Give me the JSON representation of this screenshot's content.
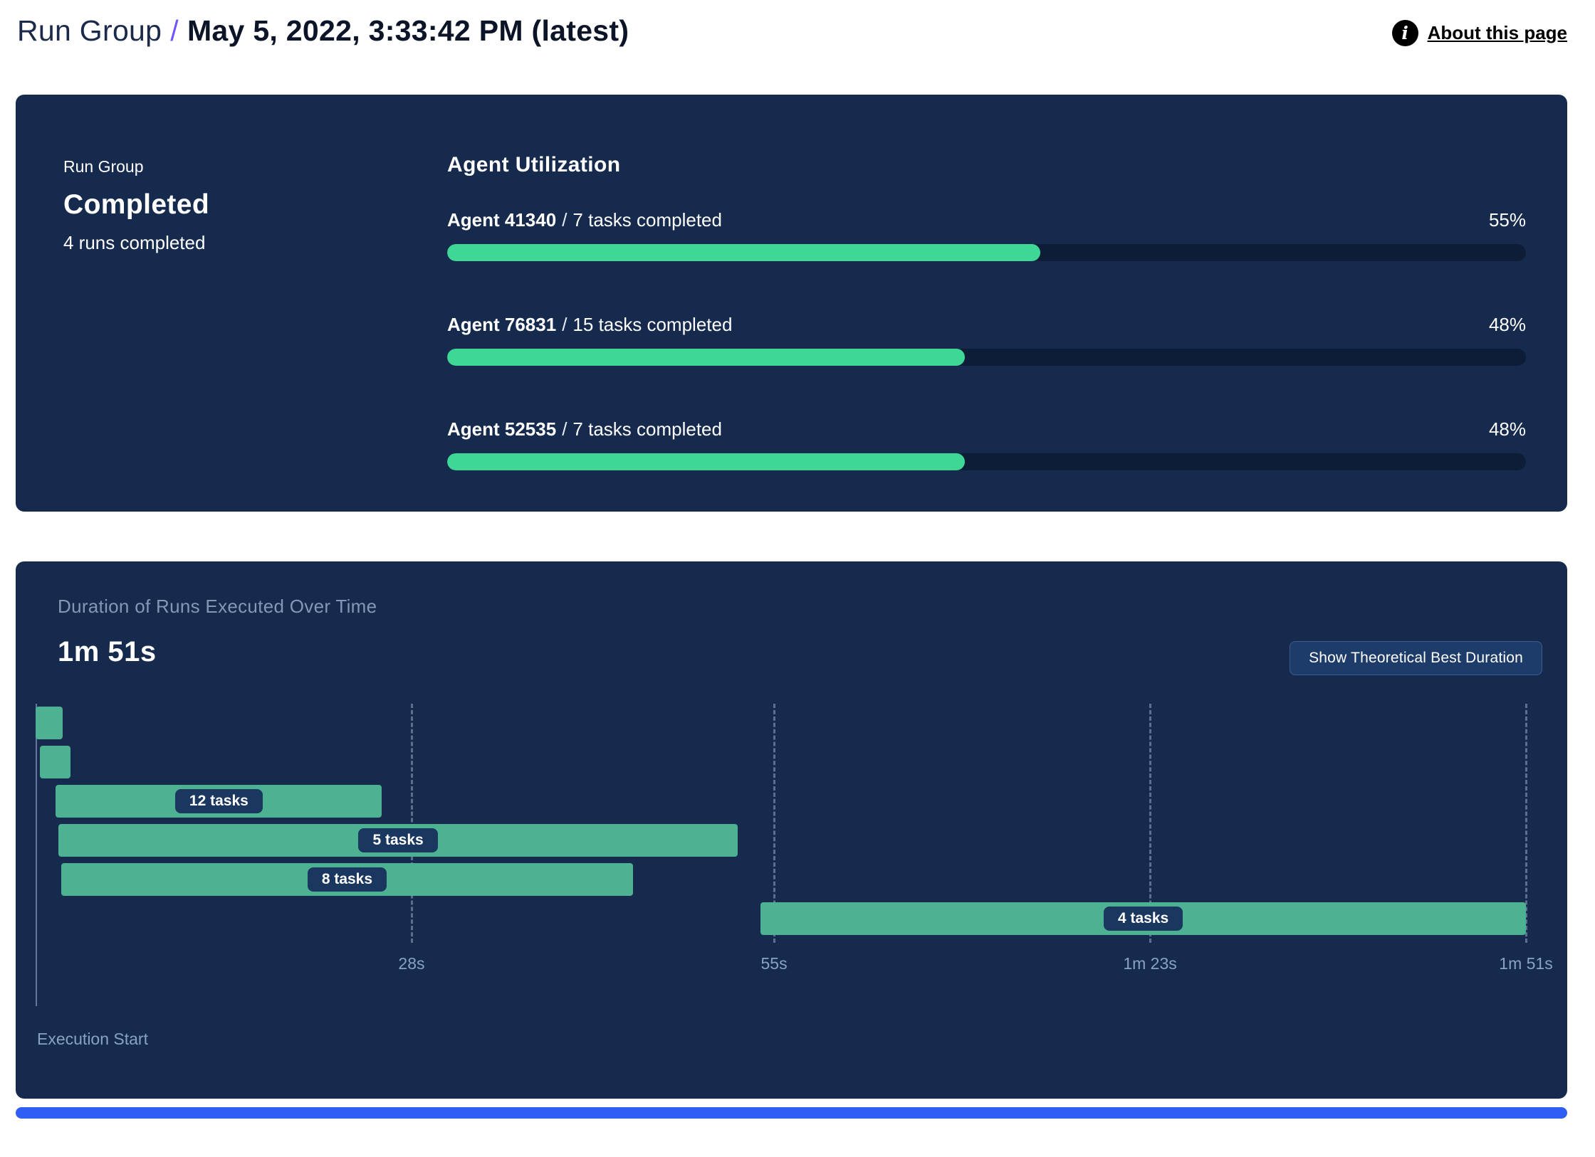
{
  "header": {
    "breadcrumb_root": "Run Group",
    "separator": "/",
    "title": "May 5, 2022, 3:33:42 PM (latest)",
    "about": {
      "label": "About this page",
      "icon": "i"
    }
  },
  "summary": {
    "label": "Run Group",
    "status": "Completed",
    "runs": "4 runs completed"
  },
  "utilization": {
    "title": "Agent Utilization",
    "separator": "/",
    "agents": [
      {
        "name": "Agent 41340",
        "tasks": "7 tasks completed",
        "percent": 55,
        "percent_label": "55%"
      },
      {
        "name": "Agent 76831",
        "tasks": "15 tasks completed",
        "percent": 48,
        "percent_label": "48%"
      },
      {
        "name": "Agent 52535",
        "tasks": "7 tasks completed",
        "percent": 48,
        "percent_label": "48%"
      }
    ]
  },
  "gantt": {
    "subtitle": "Duration of Runs Executed Over Time",
    "total_label": "1m 51s",
    "total_seconds": 111,
    "button_label": "Show Theoretical Best Duration",
    "axis_label": "Execution Start",
    "ticks": [
      {
        "label": "28s",
        "seconds": 28
      },
      {
        "label": "55s",
        "seconds": 55
      },
      {
        "label": "1m 23s",
        "seconds": 83
      },
      {
        "label": "1m 51s",
        "seconds": 111
      }
    ],
    "bars": [
      {
        "start_seconds": 0,
        "end_seconds": 2,
        "label": ""
      },
      {
        "start_seconds": 0.3,
        "end_seconds": 2.6,
        "label": ""
      },
      {
        "start_seconds": 1.5,
        "end_seconds": 25.8,
        "label": "12 tasks"
      },
      {
        "start_seconds": 1.7,
        "end_seconds": 52.3,
        "label": "5 tasks"
      },
      {
        "start_seconds": 1.9,
        "end_seconds": 44.5,
        "label": "8 tasks"
      },
      {
        "start_seconds": 54,
        "end_seconds": 111,
        "label": "4 tasks"
      }
    ]
  },
  "colors": {
    "panel_bg": "#152a4d",
    "progress_fill": "#3fd796",
    "progress_track": "#0d1d37",
    "gantt_bar": "#4cb292",
    "accent_slash": "#6e56f7",
    "bottom_strip": "#2e5ff2"
  },
  "chart_data": [
    {
      "type": "bar",
      "title": "Agent Utilization",
      "categories": [
        "Agent 41340",
        "Agent 76831",
        "Agent 52535"
      ],
      "values": [
        55,
        48,
        48
      ],
      "value_unit": "%",
      "ylim": [
        0,
        100
      ]
    },
    {
      "type": "gantt",
      "title": "Duration of Runs Executed Over Time",
      "total_duration_seconds": 111,
      "x_ticks_seconds": [
        28,
        55,
        83,
        111
      ],
      "x_tick_labels": [
        "28s",
        "55s",
        "1m 23s",
        "1m 51s"
      ],
      "runs": [
        {
          "start": 0,
          "end": 2,
          "tasks": null
        },
        {
          "start": 0.3,
          "end": 2.6,
          "tasks": null
        },
        {
          "start": 1.5,
          "end": 25.8,
          "tasks": 12
        },
        {
          "start": 1.7,
          "end": 52.3,
          "tasks": 5
        },
        {
          "start": 1.9,
          "end": 44.5,
          "tasks": 8
        },
        {
          "start": 54,
          "end": 111,
          "tasks": 4
        }
      ]
    }
  ]
}
